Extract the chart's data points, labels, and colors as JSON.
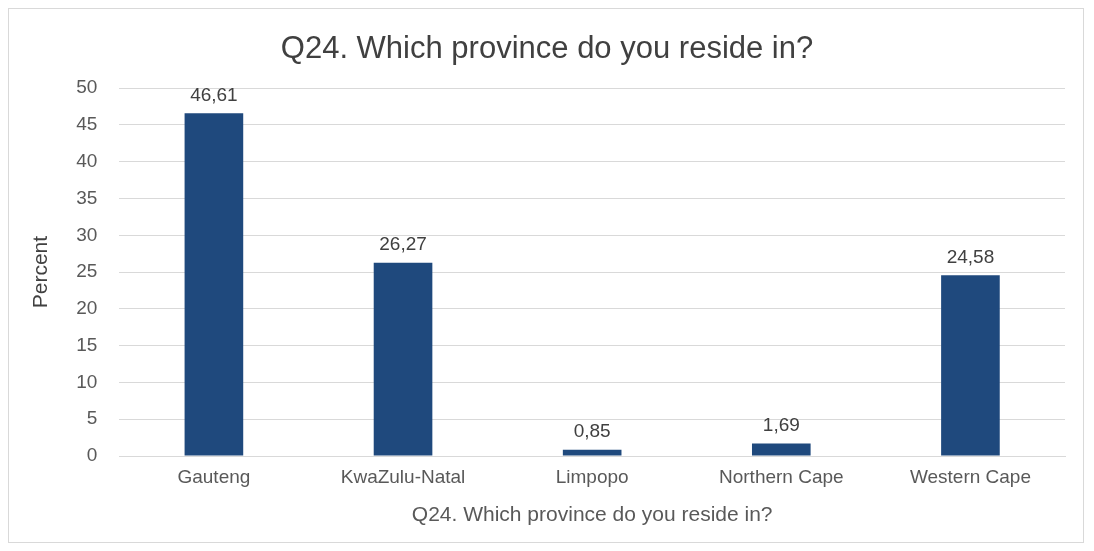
{
  "chart_data": {
    "type": "bar",
    "title": "Q24. Which province do you reside in?",
    "xlabel": "Q24. Which province do you reside in?",
    "ylabel": "Percent",
    "categories": [
      "Gauteng",
      "KwaZulu-Natal",
      "Limpopo",
      "Northern Cape",
      "Western Cape"
    ],
    "values": [
      46.61,
      26.27,
      0.85,
      1.69,
      24.58
    ],
    "value_labels": [
      "46,61",
      "26,27",
      "0,85",
      "1,69",
      "24,58"
    ],
    "color": "#1f497d",
    "ylim": [
      0,
      50
    ],
    "yticks": [
      0,
      5,
      10,
      15,
      20,
      25,
      30,
      35,
      40,
      45,
      50
    ],
    "grid": "y",
    "legend": false
  }
}
